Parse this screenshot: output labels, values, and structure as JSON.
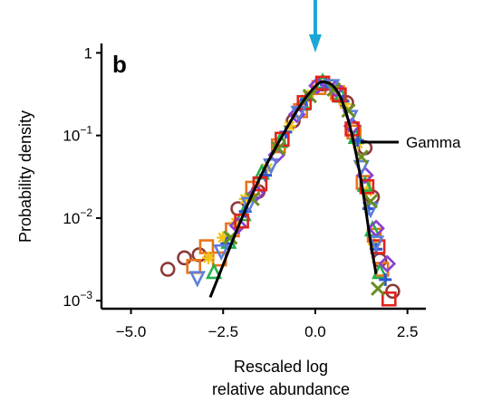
{
  "chart_data": {
    "type": "scatter",
    "panel_label": "b",
    "title": "",
    "xlabel_lines": [
      "Rescaled log",
      "relative abundance"
    ],
    "ylabel": "Probability density",
    "xlim": [
      -5.8,
      3.0
    ],
    "ylim": [
      0.0008,
      1.3
    ],
    "y_scale": "log",
    "grid": false,
    "x_ticks": [
      {
        "value": -5.0,
        "label": "−5.0"
      },
      {
        "value": -2.5,
        "label": "−2.5"
      },
      {
        "value": 0.0,
        "label": "0.0"
      },
      {
        "value": 2.5,
        "label": "2.5"
      }
    ],
    "y_ticks": [
      {
        "value": 1,
        "base": "1",
        "exp": ""
      },
      {
        "value": 0.1,
        "base": "10",
        "exp": "−1"
      },
      {
        "value": 0.01,
        "base": "10",
        "exp": "−2"
      },
      {
        "value": 0.001,
        "base": "10",
        "exp": "−3"
      }
    ],
    "arrow": {
      "x": 0.0,
      "color": "#1aa7d6"
    },
    "legend": {
      "position": "right",
      "entries": [
        {
          "name": "Gamma",
          "color": "#000000"
        }
      ]
    },
    "fit_curve": {
      "name": "Gamma",
      "color": "#000000",
      "x": [
        -2.85,
        -2.6,
        -2.3,
        -2.0,
        -1.7,
        -1.4,
        -1.1,
        -0.8,
        -0.5,
        -0.2,
        0.1,
        0.3,
        0.5,
        0.7,
        0.9,
        1.1,
        1.3,
        1.5,
        1.65
      ],
      "y": [
        0.0011,
        0.0021,
        0.0046,
        0.0098,
        0.0198,
        0.038,
        0.068,
        0.117,
        0.198,
        0.31,
        0.43,
        0.44,
        0.39,
        0.28,
        0.15,
        0.062,
        0.02,
        0.0051,
        0.0021
      ]
    },
    "series": [
      {
        "color": "#8b3a3a",
        "marker": "circle",
        "x": [
          -4.0,
          -3.55,
          -3.15,
          -2.1,
          -1.55,
          -0.6,
          0.2,
          0.85,
          1.35,
          1.55,
          1.75,
          2.1
        ],
        "y": [
          0.0024,
          0.0033,
          0.0036,
          0.013,
          0.021,
          0.15,
          0.42,
          0.25,
          0.071,
          0.018,
          0.0031,
          0.0013
        ]
      },
      {
        "color": "#e8731a",
        "marker": "square",
        "x": [
          -3.3,
          -2.95,
          -2.6,
          -2.25,
          -1.7,
          -1.0,
          -0.4,
          0.1,
          0.6,
          1.05,
          1.3,
          1.6,
          1.8
        ],
        "y": [
          0.0026,
          0.0045,
          0.0032,
          0.0072,
          0.023,
          0.075,
          0.2,
          0.38,
          0.33,
          0.11,
          0.027,
          0.0062,
          0.0024
        ]
      },
      {
        "color": "#f2c318",
        "marker": "asterisk",
        "x": [
          -2.9,
          -2.5,
          -2.15,
          -1.9,
          -1.3,
          -0.7,
          -0.2,
          0.35,
          0.8,
          1.15,
          1.4,
          1.6
        ],
        "y": [
          0.0033,
          0.0058,
          0.0088,
          0.017,
          0.04,
          0.13,
          0.3,
          0.42,
          0.24,
          0.08,
          0.021,
          0.0048
        ]
      },
      {
        "color": "#23b24b",
        "marker": "triangle",
        "x": [
          -2.75,
          -2.35,
          -1.95,
          -1.45,
          -0.95,
          -0.35,
          0.2,
          0.7,
          1.1,
          1.35,
          1.55,
          1.75
        ],
        "y": [
          0.0022,
          0.0051,
          0.011,
          0.035,
          0.085,
          0.24,
          0.44,
          0.3,
          0.095,
          0.025,
          0.0072,
          0.0022
        ]
      },
      {
        "color": "#2f55d4",
        "marker": "plus",
        "x": [
          -2.4,
          -1.9,
          -1.35,
          -0.8,
          -0.25,
          0.3,
          0.75,
          1.15,
          1.45,
          1.65,
          1.9
        ],
        "y": [
          0.0049,
          0.012,
          0.033,
          0.11,
          0.27,
          0.41,
          0.26,
          0.087,
          0.013,
          0.0042,
          0.0018
        ]
      },
      {
        "color": "#8a3fd1",
        "marker": "diamond",
        "x": [
          -2.1,
          -1.6,
          -1.05,
          -0.5,
          0.05,
          0.55,
          1.0,
          1.35,
          1.65,
          1.95
        ],
        "y": [
          0.0081,
          0.02,
          0.058,
          0.18,
          0.4,
          0.37,
          0.13,
          0.033,
          0.0075,
          0.0028
        ]
      },
      {
        "color": "#e0231c",
        "marker": "square",
        "x": [
          -2.0,
          -1.5,
          -0.9,
          -0.3,
          0.2,
          0.65,
          1.0,
          1.4,
          1.7,
          2.0
        ],
        "y": [
          0.0092,
          0.026,
          0.09,
          0.25,
          0.43,
          0.31,
          0.12,
          0.024,
          0.0045,
          0.00105
        ]
      },
      {
        "color": "#5c7fd9",
        "marker": "inv-triangle",
        "x": [
          -3.2,
          -2.55,
          -1.8,
          -1.2,
          -0.45,
          0.45,
          0.95,
          1.25,
          1.5,
          1.65
        ],
        "y": [
          0.0019,
          0.004,
          0.015,
          0.044,
          0.19,
          0.4,
          0.17,
          0.042,
          0.013,
          0.0051
        ]
      },
      {
        "color": "#6b8e23",
        "marker": "cross",
        "x": [
          -2.3,
          -1.7,
          -1.0,
          -0.15,
          0.5,
          0.9,
          1.25,
          1.5,
          1.7
        ],
        "y": [
          0.0058,
          0.017,
          0.07,
          0.3,
          0.36,
          0.2,
          0.055,
          0.016,
          0.0014
        ]
      }
    ]
  }
}
